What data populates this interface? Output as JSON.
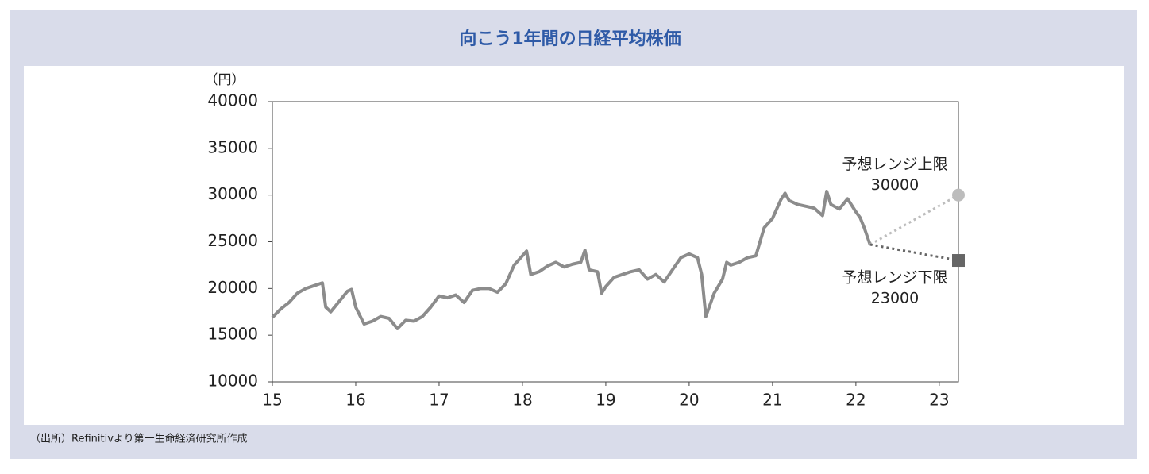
{
  "chart_data": {
    "type": "line",
    "title": "向こう1年間の日経平均株価",
    "y_unit": "（円）",
    "source": "（出所）Refinitivより第一生命経済研究所作成",
    "xlim": [
      15,
      23.23
    ],
    "xticks": [
      15,
      16,
      17,
      18,
      19,
      20,
      21,
      22,
      23
    ],
    "ylim": [
      10000,
      40000
    ],
    "yticks": [
      10000,
      15000,
      20000,
      25000,
      30000,
      35000,
      40000
    ],
    "series": [
      {
        "color": "#8c8c8c",
        "style": "solid",
        "x": [
          15.0,
          15.1,
          15.2,
          15.3,
          15.4,
          15.5,
          15.6,
          15.64,
          15.7,
          15.8,
          15.9,
          15.95,
          16.0,
          16.1,
          16.2,
          16.3,
          16.4,
          16.5,
          16.6,
          16.7,
          16.8,
          16.9,
          17.0,
          17.1,
          17.2,
          17.3,
          17.4,
          17.5,
          17.6,
          17.7,
          17.8,
          17.9,
          18.0,
          18.05,
          18.1,
          18.2,
          18.3,
          18.4,
          18.5,
          18.6,
          18.7,
          18.75,
          18.8,
          18.9,
          18.95,
          19.0,
          19.1,
          19.2,
          19.3,
          19.4,
          19.5,
          19.6,
          19.7,
          19.8,
          19.9,
          20.0,
          20.1,
          20.15,
          20.2,
          20.3,
          20.4,
          20.45,
          20.5,
          20.6,
          20.7,
          20.8,
          20.85,
          20.9,
          21.0,
          21.1,
          21.15,
          21.2,
          21.3,
          21.4,
          21.5,
          21.6,
          21.65,
          21.7,
          21.8,
          21.9,
          22.0,
          22.05,
          22.1,
          22.17
        ],
        "values": [
          16900,
          17800,
          18500,
          19500,
          20000,
          20300,
          20600,
          18000,
          17500,
          18600,
          19700,
          19900,
          18000,
          16200,
          16500,
          17000,
          16800,
          15700,
          16600,
          16500,
          17000,
          18000,
          19200,
          19000,
          19300,
          18500,
          19800,
          20000,
          20000,
          19600,
          20500,
          22500,
          23500,
          24000,
          21500,
          21800,
          22400,
          22800,
          22300,
          22600,
          22800,
          24100,
          22000,
          21800,
          19500,
          20200,
          21200,
          21500,
          21800,
          22000,
          21000,
          21500,
          20700,
          22000,
          23300,
          23700,
          23300,
          21500,
          17000,
          19500,
          21000,
          22800,
          22500,
          22800,
          23300,
          23500,
          25000,
          26500,
          27500,
          29500,
          30200,
          29400,
          29000,
          28800,
          28600,
          27800,
          30400,
          29000,
          28500,
          29600,
          28200,
          27600,
          26500,
          24700
        ]
      },
      {
        "name": "予想レンジ上限",
        "color": "#bdbdbd",
        "style": "dotted",
        "marker": "circle",
        "x": [
          22.17,
          23.23
        ],
        "values": [
          24700,
          30000
        ]
      },
      {
        "name": "予想レンジ下限",
        "color": "#666666",
        "style": "dotted",
        "marker": "square",
        "x": [
          22.17,
          23.23
        ],
        "values": [
          24700,
          23000
        ]
      }
    ]
  }
}
